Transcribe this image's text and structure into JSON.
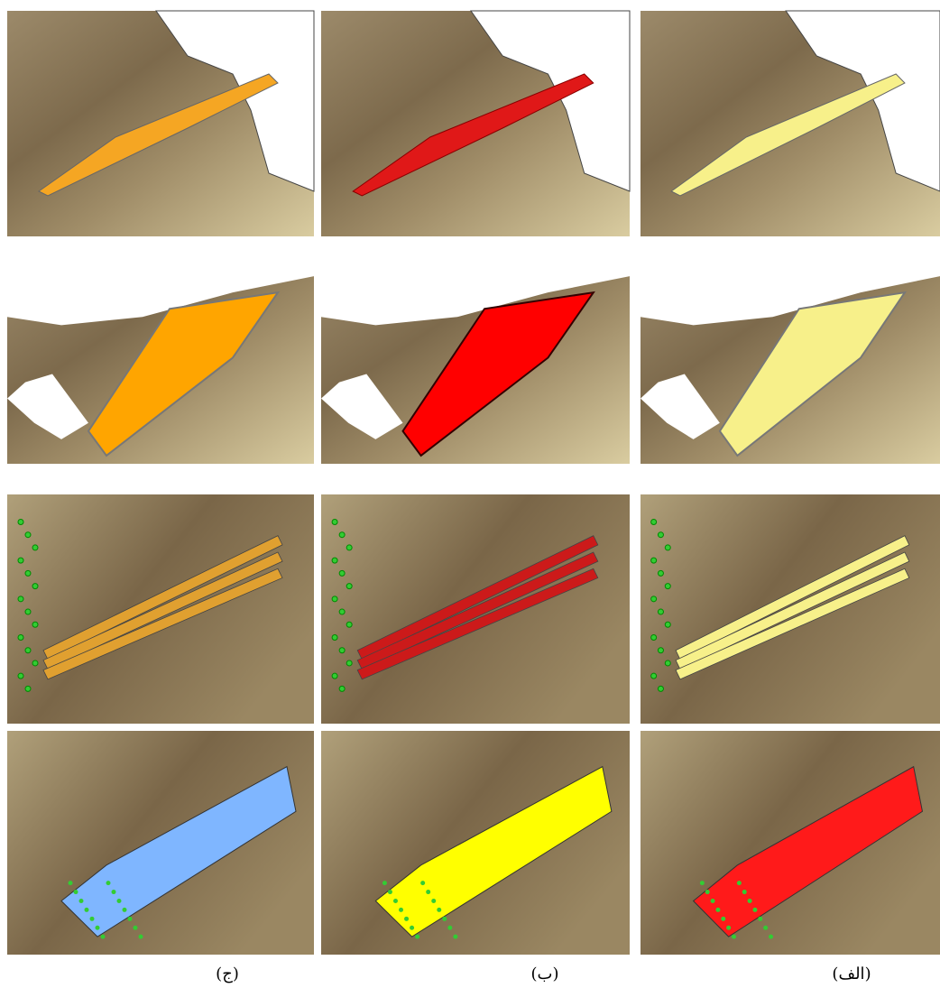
{
  "captions": [
    "(ج)",
    "(ب)",
    "(الف)"
  ]
}
